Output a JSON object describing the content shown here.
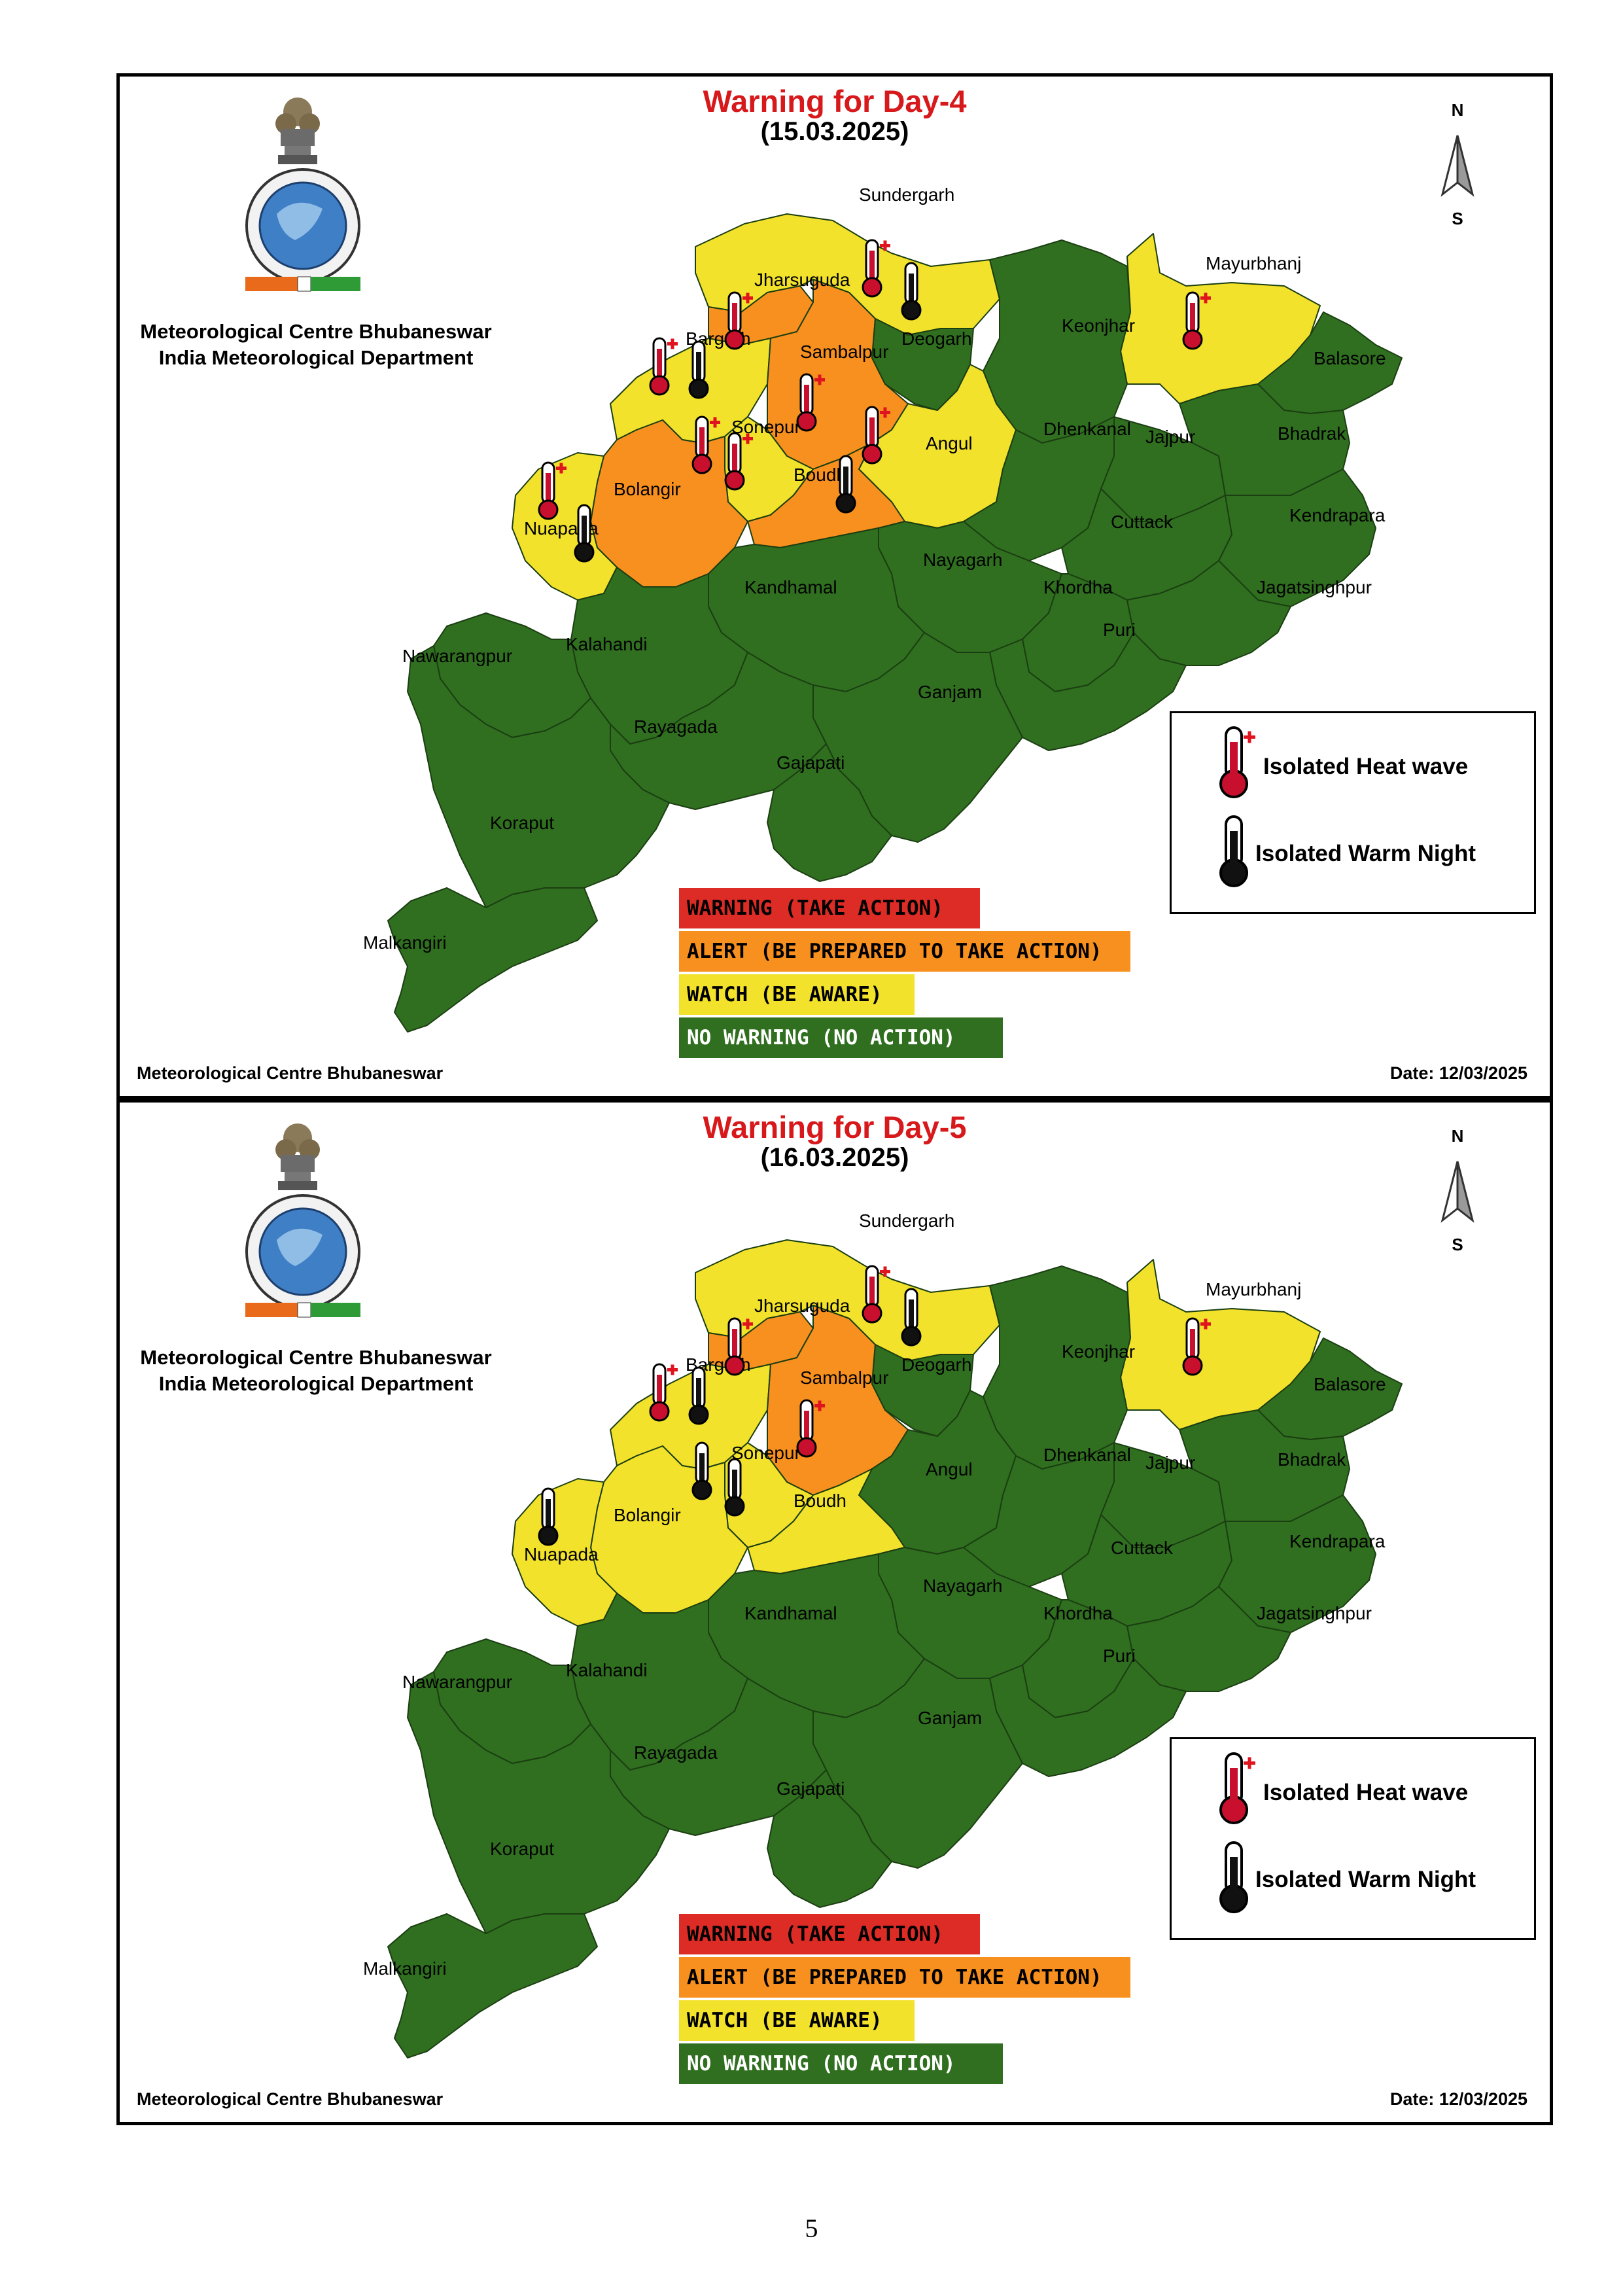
{
  "page_number": "5",
  "colors": {
    "warning": "#dd2b26",
    "alert": "#f7901e",
    "watch": "#f2e22b",
    "no_warning": "#2f6f1f",
    "heat_icon_fill": "#c8102e",
    "warm_icon_fill": "#111111",
    "title": "#d7191c"
  },
  "legend": {
    "heat_wave": "Isolated Heat wave",
    "warm_night": "Isolated Warm Night",
    "heat_wave_icon": "thermometer-red-plus-icon",
    "warm_night_icon": "thermometer-black-icon"
  },
  "scale": [
    {
      "label": "WARNING (TAKE ACTION)",
      "level": "warning"
    },
    {
      "label": "ALERT (BE PREPARED TO TAKE ACTION)",
      "level": "alert"
    },
    {
      "label": "WATCH (BE AWARE)",
      "level": "watch"
    },
    {
      "label": "NO WARNING (NO ACTION)",
      "level": "no_warning"
    }
  ],
  "organization": {
    "line1": "Meteorological Centre Bhubaneswar",
    "line2": "India Meteorological Department"
  },
  "compass": {
    "north": "N",
    "south": "S"
  },
  "footer": {
    "left": "Meteorological Centre Bhubaneswar",
    "right": "Date: 12/03/2025"
  },
  "district_names": {
    "sundergarh": "Sundergarh",
    "mayurbhanj": "Mayurbhanj",
    "jharsuguda": "Jharsuguda",
    "keonjhar": "Keonjhar",
    "bargarh": "Bargarh",
    "sambalpur": "Sambalpur",
    "deogarh": "Deogarh",
    "balasore": "Balasore",
    "sonepur": "Sonepur",
    "angul": "Angul",
    "dhenkanal": "Dhenkanal",
    "jajpur": "Jajpur",
    "bhadrak": "Bhadrak",
    "bolangir": "Bolangir",
    "boudh": "Boudh",
    "cuttack": "Cuttack",
    "kendrapara": "Kendrapara",
    "nuapada": "Nuapada",
    "nayagarh": "Nayagarh",
    "khordha": "Khordha",
    "jagatsinghpur": "Jagatsinghpur",
    "kandhamal": "Kandhamal",
    "puri": "Puri",
    "kalahandi": "Kalahandi",
    "nawarangpur": "Nawarangpur",
    "ganjam": "Ganjam",
    "rayagada": "Rayagada",
    "gajapati": "Gajapati",
    "koraput": "Koraput",
    "malkangiri": "Malkangiri"
  },
  "panels": [
    {
      "title": "Warning for Day-4",
      "date": "(15.03.2025)",
      "district_levels": {
        "sundergarh": "watch",
        "mayurbhanj": "watch",
        "jharsuguda": "alert",
        "keonjhar": "no_warning",
        "bargarh": "watch",
        "sambalpur": "alert",
        "deogarh": "no_warning",
        "balasore": "no_warning",
        "sonepur": "watch",
        "angul": "watch",
        "dhenkanal": "no_warning",
        "jajpur": "no_warning",
        "bhadrak": "no_warning",
        "bolangir": "alert",
        "boudh": "alert",
        "cuttack": "no_warning",
        "kendrapara": "no_warning",
        "nuapada": "watch",
        "nayagarh": "no_warning",
        "khordha": "no_warning",
        "jagatsinghpur": "no_warning",
        "kandhamal": "no_warning",
        "puri": "no_warning",
        "kalahandi": "no_warning",
        "nawarangpur": "no_warning",
        "ganjam": "no_warning",
        "rayagada": "no_warning",
        "gajapati": "no_warning",
        "koraput": "no_warning",
        "malkangiri": "no_warning"
      },
      "heat_wave_districts": [
        "sundergarh",
        "mayurbhanj",
        "jharsuguda",
        "bargarh",
        "sambalpur",
        "sonepur",
        "angul",
        "boudh",
        "bolangir"
      ],
      "warm_night_districts": [
        "sundergarh",
        "bargarh",
        "boudh",
        "bolangir"
      ]
    },
    {
      "title": "Warning for Day-5",
      "date": "(16.03.2025)",
      "district_levels": {
        "sundergarh": "watch",
        "mayurbhanj": "watch",
        "jharsuguda": "alert",
        "keonjhar": "no_warning",
        "bargarh": "watch",
        "sambalpur": "alert",
        "deogarh": "no_warning",
        "balasore": "no_warning",
        "sonepur": "watch",
        "angul": "no_warning",
        "dhenkanal": "no_warning",
        "jajpur": "no_warning",
        "bhadrak": "no_warning",
        "bolangir": "watch",
        "boudh": "watch",
        "cuttack": "no_warning",
        "kendrapara": "no_warning",
        "nuapada": "watch",
        "nayagarh": "no_warning",
        "khordha": "no_warning",
        "jagatsinghpur": "no_warning",
        "kandhamal": "no_warning",
        "puri": "no_warning",
        "kalahandi": "no_warning",
        "nawarangpur": "no_warning",
        "ganjam": "no_warning",
        "rayagada": "no_warning",
        "gajapati": "no_warning",
        "koraput": "no_warning",
        "malkangiri": "no_warning"
      },
      "heat_wave_districts": [
        "sundergarh",
        "mayurbhanj",
        "jharsuguda",
        "bargarh",
        "sambalpur"
      ],
      "warm_night_districts": [
        "sundergarh",
        "bargarh",
        "sonepur",
        "boudh",
        "bolangir"
      ]
    }
  ]
}
